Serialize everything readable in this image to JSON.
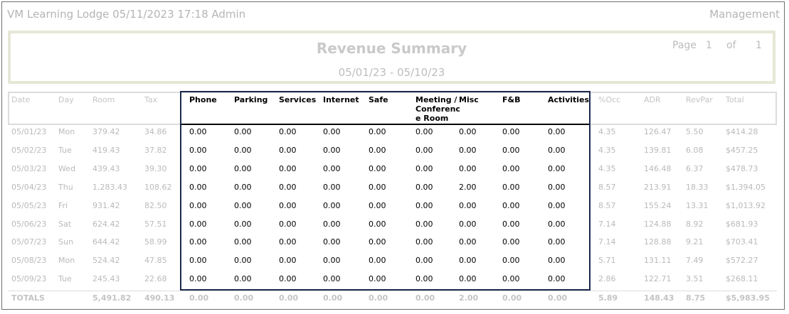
{
  "header": {
    "app_title": "VM Learning Lodge 05/11/2023 17:18  Admin",
    "section": "Management"
  },
  "report": {
    "title": "Revenue Summary",
    "date_range": "05/01/23 - 05/10/23",
    "page_label": "Page",
    "page_number": "1",
    "of_label": "of",
    "page_total": "1"
  },
  "columns": [
    {
      "key": "date",
      "label": "Date"
    },
    {
      "key": "day",
      "label": "Day"
    },
    {
      "key": "room",
      "label": "Room"
    },
    {
      "key": "tax",
      "label": "Tax"
    },
    {
      "key": "phone",
      "label": "Phone"
    },
    {
      "key": "parking",
      "label": "Parking"
    },
    {
      "key": "services",
      "label": "Services"
    },
    {
      "key": "internet",
      "label": "Internet"
    },
    {
      "key": "safe",
      "label": "Safe"
    },
    {
      "key": "meeting",
      "label": "Meeting /\nConferenc\ne Room"
    },
    {
      "key": "misc",
      "label": "Misc"
    },
    {
      "key": "fb",
      "label": "F&B"
    },
    {
      "key": "activities",
      "label": "Activities"
    },
    {
      "key": "occ",
      "label": "%Occ"
    },
    {
      "key": "adr",
      "label": "ADR"
    },
    {
      "key": "revpar",
      "label": "RevPar"
    },
    {
      "key": "total",
      "label": "Total"
    }
  ],
  "rows": [
    [
      "05/01/23",
      "Mon",
      "379.42",
      "34.86",
      "0.00",
      "0.00",
      "0.00",
      "0.00",
      "0.00",
      "0.00",
      "0.00",
      "0.00",
      "0.00",
      "4.35",
      "126.47",
      "5.50",
      "$414.28"
    ],
    [
      "05/02/23",
      "Tue",
      "419.43",
      "37.82",
      "0.00",
      "0.00",
      "0.00",
      "0.00",
      "0.00",
      "0.00",
      "0.00",
      "0.00",
      "0.00",
      "4.35",
      "139.81",
      "6.08",
      "$457.25"
    ],
    [
      "05/03/23",
      "Wed",
      "439.43",
      "39.30",
      "0.00",
      "0.00",
      "0.00",
      "0.00",
      "0.00",
      "0.00",
      "0.00",
      "0.00",
      "0.00",
      "4.35",
      "146.48",
      "6.37",
      "$478.73"
    ],
    [
      "05/04/23",
      "Thu",
      "1,283.43",
      "108.62",
      "0.00",
      "0.00",
      "0.00",
      "0.00",
      "0.00",
      "0.00",
      "2.00",
      "0.00",
      "0.00",
      "8.57",
      "213.91",
      "18.33",
      "$1,394.05"
    ],
    [
      "05/05/23",
      "Fri",
      "931.42",
      "82.50",
      "0.00",
      "0.00",
      "0.00",
      "0.00",
      "0.00",
      "0.00",
      "0.00",
      "0.00",
      "0.00",
      "8.57",
      "155.24",
      "13.31",
      "$1,013.92"
    ],
    [
      "05/06/23",
      "Sat",
      "624.42",
      "57.51",
      "0.00",
      "0.00",
      "0.00",
      "0.00",
      "0.00",
      "0.00",
      "0.00",
      "0.00",
      "0.00",
      "7.14",
      "124.88",
      "8.92",
      "$681.93"
    ],
    [
      "05/07/23",
      "Sun",
      "644.42",
      "58.99",
      "0.00",
      "0.00",
      "0.00",
      "0.00",
      "0.00",
      "0.00",
      "0.00",
      "0.00",
      "0.00",
      "7.14",
      "128.88",
      "9.21",
      "$703.41"
    ],
    [
      "05/08/23",
      "Mon",
      "524.42",
      "47.85",
      "0.00",
      "0.00",
      "0.00",
      "0.00",
      "0.00",
      "0.00",
      "0.00",
      "0.00",
      "0.00",
      "5.71",
      "131.11",
      "7.49",
      "$572.27"
    ],
    [
      "05/09/23",
      "Tue",
      "245.43",
      "22.68",
      "0.00",
      "0.00",
      "0.00",
      "0.00",
      "0.00",
      "0.00",
      "0.00",
      "0.00",
      "0.00",
      "2.86",
      "122.71",
      "3.51",
      "$268.11"
    ]
  ],
  "totals": [
    "TOTALS",
    "",
    "5,491.82",
    "490.13",
    "0.00",
    "0.00",
    "0.00",
    "0.00",
    "0.00",
    "0.00",
    "2.00",
    "0.00",
    "0.00",
    "5.89",
    "148.43",
    "8.75",
    "$5,983.95"
  ],
  "colors": {
    "highlight_border": "#1c2a4f",
    "muted_text": "#bababa",
    "title_box_border": "#e7e7d6"
  }
}
